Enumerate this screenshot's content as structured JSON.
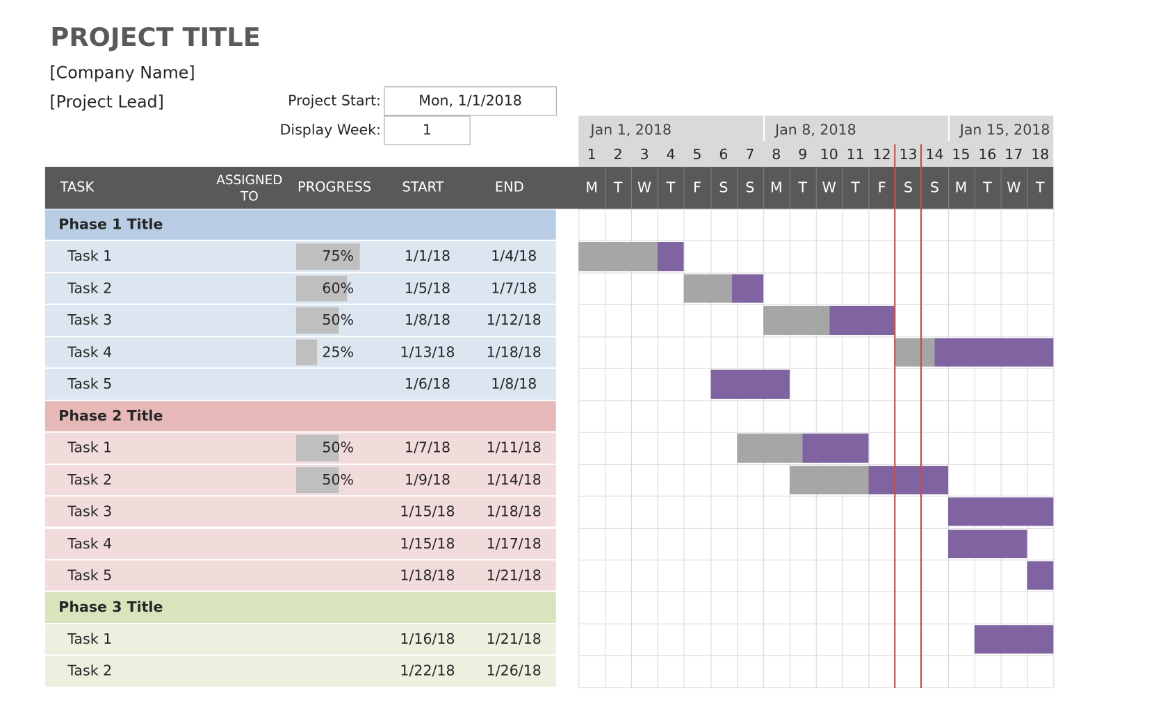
{
  "header": {
    "title": "PROJECT TITLE",
    "company": "[Company Name]",
    "lead": "[Project Lead]"
  },
  "settings": {
    "project_start_label": "Project Start:",
    "project_start": "Mon, 1/1/2018",
    "display_week_label": "Display Week:",
    "display_week": 1
  },
  "columns": {
    "task": "TASK",
    "assigned": "ASSIGNED TO",
    "progress": "PROGRESS",
    "start": "START",
    "end": "END"
  },
  "timeline": {
    "weeks": [
      "Jan 1, 2018",
      "Jan 8, 2018",
      "Jan 15, 2018"
    ],
    "days": [
      1,
      2,
      3,
      4,
      5,
      6,
      7,
      8,
      9,
      10,
      11,
      12,
      13,
      14,
      15,
      16,
      17,
      18
    ],
    "weekdays": [
      "M",
      "T",
      "W",
      "T",
      "F",
      "S",
      "S",
      "M",
      "T",
      "W",
      "T",
      "F",
      "S",
      "S",
      "M",
      "T",
      "W",
      "T"
    ]
  },
  "phases": [
    {
      "title": "Phase 1 Title",
      "tasks": [
        {
          "name": "Task 1",
          "progress": 75,
          "progress_label": "75%",
          "start": "1/1/18",
          "end": "1/4/18"
        },
        {
          "name": "Task 2",
          "progress": 60,
          "progress_label": "60%",
          "start": "1/5/18",
          "end": "1/7/18"
        },
        {
          "name": "Task 3",
          "progress": 50,
          "progress_label": "50%",
          "start": "1/8/18",
          "end": "1/12/18"
        },
        {
          "name": "Task 4",
          "progress": 25,
          "progress_label": "25%",
          "start": "1/13/18",
          "end": "1/18/18"
        },
        {
          "name": "Task 5",
          "start": "1/6/18",
          "end": "1/8/18"
        }
      ]
    },
    {
      "title": "Phase 2 Title",
      "tasks": [
        {
          "name": "Task 1",
          "progress": 50,
          "progress_label": "50%",
          "start": "1/7/18",
          "end": "1/11/18"
        },
        {
          "name": "Task 2",
          "progress": 50,
          "progress_label": "50%",
          "start": "1/9/18",
          "end": "1/14/18"
        },
        {
          "name": "Task 3",
          "start": "1/15/18",
          "end": "1/18/18"
        },
        {
          "name": "Task 4",
          "start": "1/15/18",
          "end": "1/17/18"
        },
        {
          "name": "Task 5",
          "start": "1/18/18",
          "end": "1/21/18"
        }
      ]
    },
    {
      "title": "Phase 3 Title",
      "tasks": [
        {
          "name": "Task 1",
          "start": "1/16/18",
          "end": "1/21/18"
        },
        {
          "name": "Task 2",
          "start": "1/22/18",
          "end": "1/26/18"
        }
      ]
    }
  ]
}
